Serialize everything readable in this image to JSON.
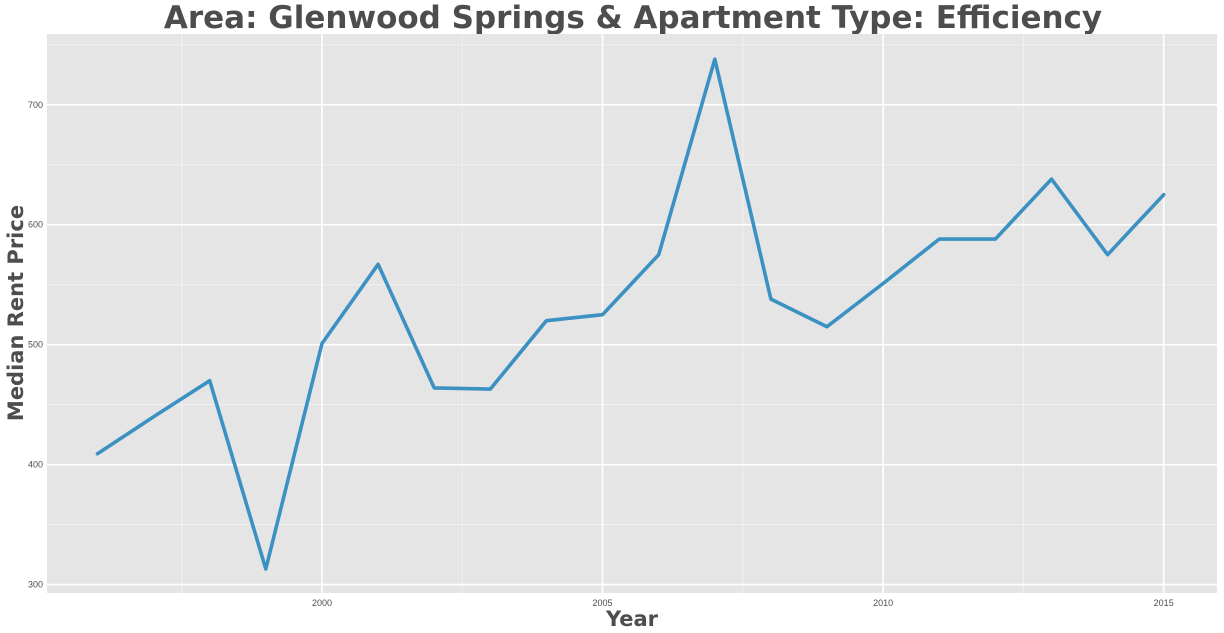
{
  "chart_data": {
    "type": "line",
    "title": "Area: Glenwood Springs & Apartment Type: Efficiency",
    "xlabel": "Year",
    "ylabel": "Median Rent Price",
    "xlim": [
      1995.1,
      2015.95
    ],
    "ylim": [
      293,
      759
    ],
    "xticks": [
      2000,
      2005,
      2010,
      2015
    ],
    "yticks": [
      300,
      400,
      500,
      600,
      700
    ],
    "grid": true,
    "background_color": "#e5e5e5",
    "line_color": "#3b91c2",
    "series": [
      {
        "x": [
          1996,
          1997,
          1998,
          1999,
          2000,
          2001,
          2002,
          2003,
          2004,
          2005,
          2006,
          2007,
          2008,
          2009,
          2010,
          2011,
          2012,
          2013,
          2014,
          2015
        ],
        "values": [
          409,
          440,
          470,
          313,
          501,
          567,
          464,
          463,
          520,
          525,
          575,
          738,
          538,
          515,
          551,
          588,
          588,
          638,
          575,
          625
        ]
      }
    ]
  }
}
